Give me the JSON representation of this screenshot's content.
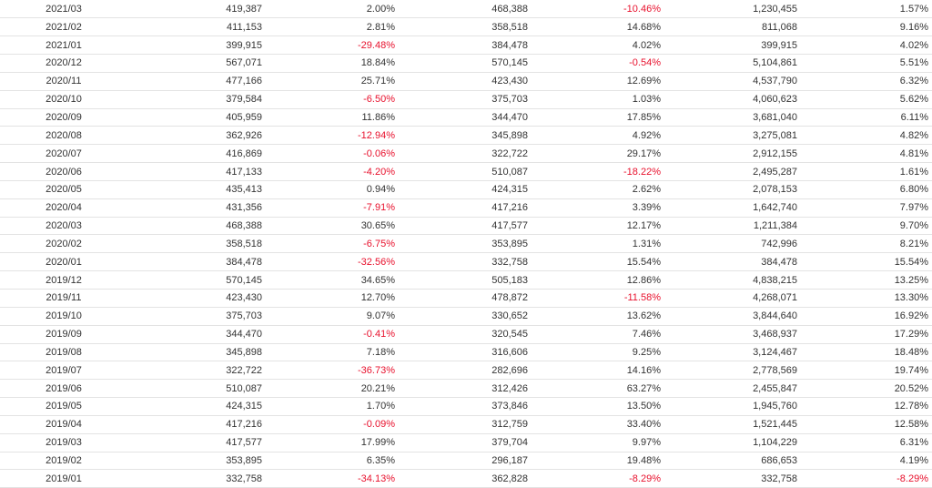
{
  "colors": {
    "negative": "#e8112d",
    "text": "#333333",
    "row_border": "#e3e3e3"
  },
  "rows": [
    [
      "2021/03",
      "419,387",
      "2.00%",
      "468,388",
      "-10.46%",
      "1,230,455",
      "1.57%"
    ],
    [
      "2021/02",
      "411,153",
      "2.81%",
      "358,518",
      "14.68%",
      "811,068",
      "9.16%"
    ],
    [
      "2021/01",
      "399,915",
      "-29.48%",
      "384,478",
      "4.02%",
      "399,915",
      "4.02%"
    ],
    [
      "2020/12",
      "567,071",
      "18.84%",
      "570,145",
      "-0.54%",
      "5,104,861",
      "5.51%"
    ],
    [
      "2020/11",
      "477,166",
      "25.71%",
      "423,430",
      "12.69%",
      "4,537,790",
      "6.32%"
    ],
    [
      "2020/10",
      "379,584",
      "-6.50%",
      "375,703",
      "1.03%",
      "4,060,623",
      "5.62%"
    ],
    [
      "2020/09",
      "405,959",
      "11.86%",
      "344,470",
      "17.85%",
      "3,681,040",
      "6.11%"
    ],
    [
      "2020/08",
      "362,926",
      "-12.94%",
      "345,898",
      "4.92%",
      "3,275,081",
      "4.82%"
    ],
    [
      "2020/07",
      "416,869",
      "-0.06%",
      "322,722",
      "29.17%",
      "2,912,155",
      "4.81%"
    ],
    [
      "2020/06",
      "417,133",
      "-4.20%",
      "510,087",
      "-18.22%",
      "2,495,287",
      "1.61%"
    ],
    [
      "2020/05",
      "435,413",
      "0.94%",
      "424,315",
      "2.62%",
      "2,078,153",
      "6.80%"
    ],
    [
      "2020/04",
      "431,356",
      "-7.91%",
      "417,216",
      "3.39%",
      "1,642,740",
      "7.97%"
    ],
    [
      "2020/03",
      "468,388",
      "30.65%",
      "417,577",
      "12.17%",
      "1,211,384",
      "9.70%"
    ],
    [
      "2020/02",
      "358,518",
      "-6.75%",
      "353,895",
      "1.31%",
      "742,996",
      "8.21%"
    ],
    [
      "2020/01",
      "384,478",
      "-32.56%",
      "332,758",
      "15.54%",
      "384,478",
      "15.54%"
    ],
    [
      "2019/12",
      "570,145",
      "34.65%",
      "505,183",
      "12.86%",
      "4,838,215",
      "13.25%"
    ],
    [
      "2019/11",
      "423,430",
      "12.70%",
      "478,872",
      "-11.58%",
      "4,268,071",
      "13.30%"
    ],
    [
      "2019/10",
      "375,703",
      "9.07%",
      "330,652",
      "13.62%",
      "3,844,640",
      "16.92%"
    ],
    [
      "2019/09",
      "344,470",
      "-0.41%",
      "320,545",
      "7.46%",
      "3,468,937",
      "17.29%"
    ],
    [
      "2019/08",
      "345,898",
      "7.18%",
      "316,606",
      "9.25%",
      "3,124,467",
      "18.48%"
    ],
    [
      "2019/07",
      "322,722",
      "-36.73%",
      "282,696",
      "14.16%",
      "2,778,569",
      "19.74%"
    ],
    [
      "2019/06",
      "510,087",
      "20.21%",
      "312,426",
      "63.27%",
      "2,455,847",
      "20.52%"
    ],
    [
      "2019/05",
      "424,315",
      "1.70%",
      "373,846",
      "13.50%",
      "1,945,760",
      "12.78%"
    ],
    [
      "2019/04",
      "417,216",
      "-0.09%",
      "312,759",
      "33.40%",
      "1,521,445",
      "12.58%"
    ],
    [
      "2019/03",
      "417,577",
      "17.99%",
      "379,704",
      "9.97%",
      "1,104,229",
      "6.31%"
    ],
    [
      "2019/02",
      "353,895",
      "6.35%",
      "296,187",
      "19.48%",
      "686,653",
      "4.19%"
    ],
    [
      "2019/01",
      "332,758",
      "-34.13%",
      "362,828",
      "-8.29%",
      "332,758",
      "-8.29%"
    ]
  ]
}
